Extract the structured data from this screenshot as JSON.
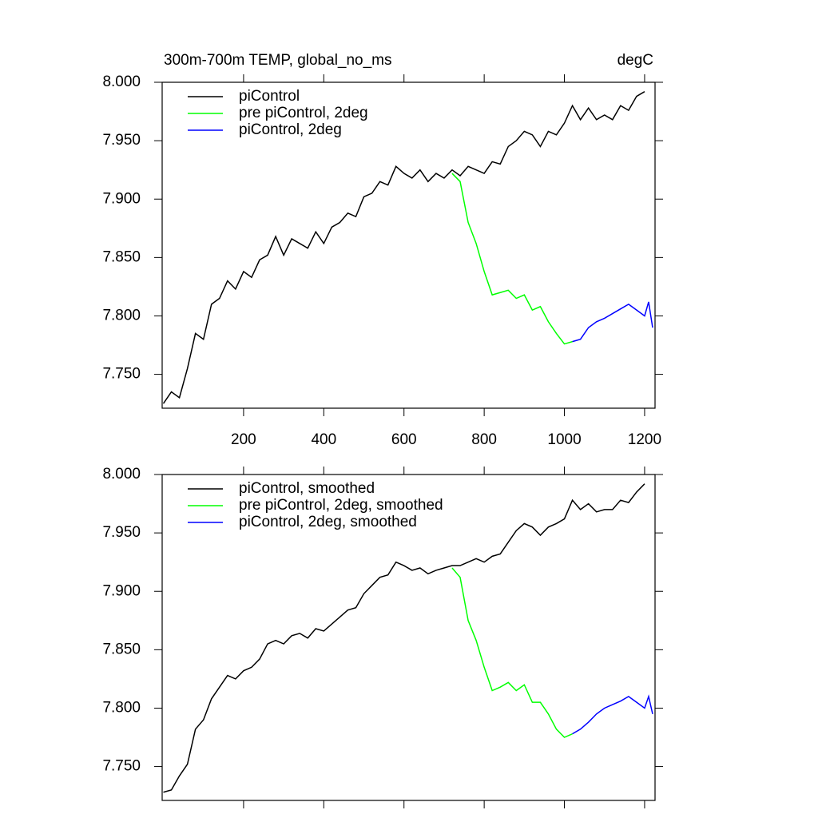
{
  "chart_data": [
    {
      "type": "line",
      "title": "300m-700m TEMP, global_no_ms",
      "units": "degC",
      "xlim": [
        -3,
        1226
      ],
      "xticks": [
        200,
        400,
        600,
        800,
        1000,
        1200
      ],
      "xtick_labels": true,
      "ylim": [
        7.721,
        8.0
      ],
      "yticks": [
        {
          "value": 7.75,
          "label": "7.750"
        },
        {
          "value": 7.8,
          "label": "7.800"
        },
        {
          "value": 7.85,
          "label": "7.850"
        },
        {
          "value": 7.9,
          "label": "7.900"
        },
        {
          "value": 7.95,
          "label": "7.950"
        },
        {
          "value": 8.0,
          "label": "8.000"
        }
      ],
      "legend": "upper left",
      "series": [
        {
          "name": "piControl",
          "color": "#000000",
          "x": [
            0,
            20,
            40,
            60,
            80,
            100,
            120,
            140,
            160,
            180,
            200,
            220,
            240,
            260,
            280,
            300,
            320,
            340,
            360,
            380,
            400,
            420,
            440,
            460,
            480,
            500,
            520,
            540,
            560,
            580,
            600,
            620,
            640,
            660,
            680,
            700,
            720,
            740,
            760,
            780,
            800,
            820,
            840,
            860,
            880,
            900,
            920,
            940,
            960,
            980,
            1000,
            1020,
            1040,
            1060,
            1080,
            1100,
            1120,
            1140,
            1160,
            1180,
            1200
          ],
          "values": [
            7.725,
            7.735,
            7.73,
            7.755,
            7.785,
            7.78,
            7.81,
            7.815,
            7.83,
            7.823,
            7.838,
            7.833,
            7.848,
            7.852,
            7.868,
            7.852,
            7.866,
            7.862,
            7.858,
            7.872,
            7.862,
            7.876,
            7.88,
            7.888,
            7.885,
            7.902,
            7.905,
            7.915,
            7.912,
            7.928,
            7.922,
            7.918,
            7.925,
            7.915,
            7.922,
            7.918,
            7.925,
            7.92,
            7.928,
            7.925,
            7.922,
            7.932,
            7.93,
            7.945,
            7.95,
            7.958,
            7.955,
            7.945,
            7.958,
            7.955,
            7.965,
            7.98,
            7.968,
            7.978,
            7.968,
            7.972,
            7.968,
            7.98,
            7.976,
            7.988,
            7.992
          ]
        },
        {
          "name": "pre piControl, 2deg",
          "color": "#00ff00",
          "x": [
            720,
            740,
            760,
            780,
            800,
            820,
            840,
            860,
            880,
            900,
            920,
            940,
            960,
            980,
            1000,
            1020
          ],
          "values": [
            7.922,
            7.915,
            7.88,
            7.862,
            7.838,
            7.818,
            7.82,
            7.822,
            7.815,
            7.818,
            7.805,
            7.808,
            7.795,
            7.785,
            7.776,
            7.778
          ]
        },
        {
          "name": "piControl, 2deg",
          "color": "#0000ff",
          "x": [
            1020,
            1040,
            1060,
            1080,
            1100,
            1120,
            1140,
            1160,
            1180,
            1200,
            1210,
            1220
          ],
          "values": [
            7.778,
            7.78,
            7.79,
            7.795,
            7.798,
            7.802,
            7.806,
            7.81,
            7.805,
            7.8,
            7.812,
            7.79
          ]
        }
      ]
    },
    {
      "type": "line",
      "xlim": [
        -3,
        1226
      ],
      "xticks": [
        200,
        400,
        600,
        800,
        1000,
        1200
      ],
      "xtick_labels": false,
      "ylim": [
        7.721,
        8.0
      ],
      "yticks": [
        {
          "value": 7.75,
          "label": "7.750"
        },
        {
          "value": 7.8,
          "label": "7.800"
        },
        {
          "value": 7.85,
          "label": "7.850"
        },
        {
          "value": 7.9,
          "label": "7.900"
        },
        {
          "value": 7.95,
          "label": "7.950"
        },
        {
          "value": 8.0,
          "label": "8.000"
        }
      ],
      "legend": "upper left",
      "series": [
        {
          "name": "piControl, smoothed",
          "color": "#000000",
          "x": [
            0,
            20,
            40,
            60,
            80,
            100,
            120,
            140,
            160,
            180,
            200,
            220,
            240,
            260,
            280,
            300,
            320,
            340,
            360,
            380,
            400,
            420,
            440,
            460,
            480,
            500,
            520,
            540,
            560,
            580,
            600,
            620,
            640,
            660,
            680,
            700,
            720,
            740,
            760,
            780,
            800,
            820,
            840,
            860,
            880,
            900,
            920,
            940,
            960,
            980,
            1000,
            1020,
            1040,
            1060,
            1080,
            1100,
            1120,
            1140,
            1160,
            1180,
            1200
          ],
          "values": [
            7.728,
            7.73,
            7.742,
            7.752,
            7.782,
            7.79,
            7.808,
            7.818,
            7.828,
            7.825,
            7.832,
            7.835,
            7.842,
            7.855,
            7.858,
            7.855,
            7.862,
            7.864,
            7.86,
            7.868,
            7.866,
            7.872,
            7.878,
            7.884,
            7.886,
            7.898,
            7.905,
            7.912,
            7.914,
            7.925,
            7.922,
            7.918,
            7.92,
            7.915,
            7.918,
            7.92,
            7.922,
            7.922,
            7.925,
            7.928,
            7.925,
            7.93,
            7.932,
            7.942,
            7.952,
            7.958,
            7.955,
            7.948,
            7.955,
            7.958,
            7.962,
            7.978,
            7.97,
            7.975,
            7.968,
            7.97,
            7.97,
            7.978,
            7.976,
            7.985,
            7.992
          ]
        },
        {
          "name": "pre piControl, 2deg, smoothed",
          "color": "#00ff00",
          "x": [
            720,
            740,
            760,
            780,
            800,
            820,
            840,
            860,
            880,
            900,
            920,
            940,
            960,
            980,
            1000,
            1020
          ],
          "values": [
            7.92,
            7.912,
            7.875,
            7.858,
            7.835,
            7.815,
            7.818,
            7.822,
            7.815,
            7.82,
            7.805,
            7.805,
            7.795,
            7.782,
            7.775,
            7.778
          ]
        },
        {
          "name": "piControl, 2deg, smoothed",
          "color": "#0000ff",
          "x": [
            1020,
            1040,
            1060,
            1080,
            1100,
            1120,
            1140,
            1160,
            1180,
            1200,
            1210,
            1220
          ],
          "values": [
            7.778,
            7.782,
            7.788,
            7.795,
            7.8,
            7.803,
            7.806,
            7.81,
            7.805,
            7.8,
            7.81,
            7.795
          ]
        }
      ]
    }
  ]
}
